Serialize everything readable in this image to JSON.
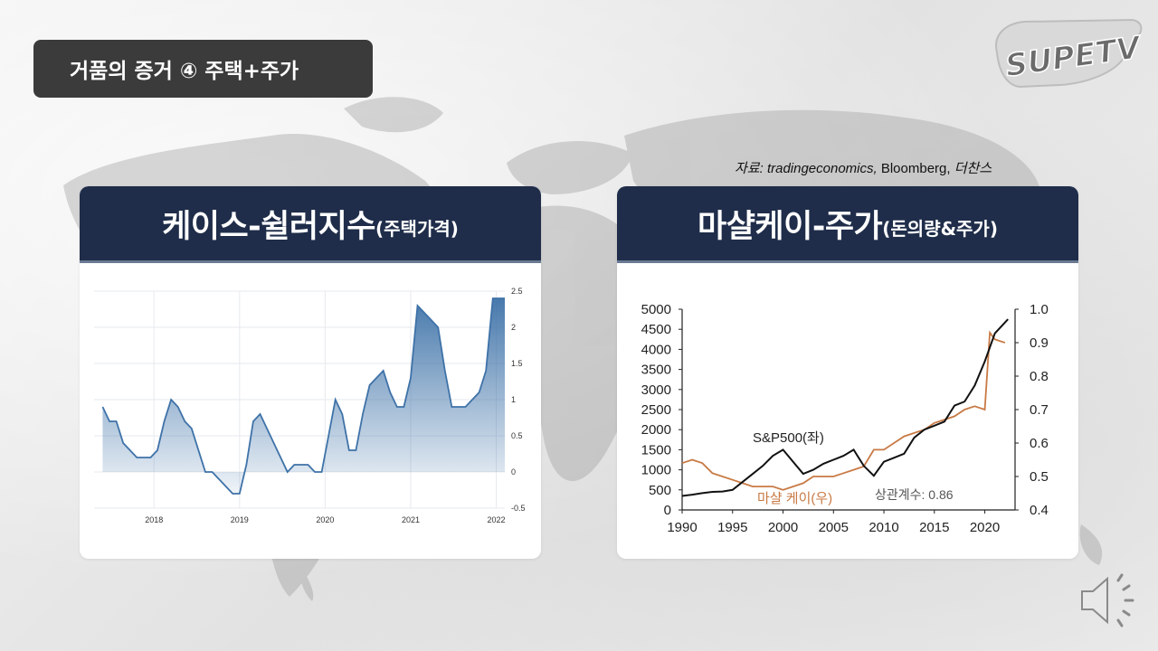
{
  "slide": {
    "title": "거품의 증거 ④ 주택+주가",
    "logo_text": "SUPETV",
    "source": {
      "prefix": "자료: ",
      "italic": "tradingeconomics,",
      "normal": " Bloomberg, ",
      "tail": "더찬스"
    },
    "speaker_icon": "speaker-icon"
  },
  "panels": {
    "left": {
      "title_big": "케이스-쉴러지수",
      "title_small": "(주택가격)"
    },
    "right": {
      "title_big": "마샬케이-주가",
      "title_small": "(돈의량&주가)"
    }
  },
  "chart_data": [
    {
      "type": "area",
      "title": "케이스-쉴러지수(주택가격)",
      "xlabel": "",
      "ylabel": "",
      "x_ticks": [
        "2018",
        "2019",
        "2020",
        "2021",
        "2022"
      ],
      "x_tick_values": [
        2018,
        2019,
        2020,
        2021,
        2022
      ],
      "y_ticks": [
        "2.5",
        "2",
        "1.5",
        "1",
        "0.5",
        "0",
        "-0.5"
      ],
      "ylim": [
        -0.5,
        2.5
      ],
      "xlim": [
        2017.3,
        2022.1
      ],
      "y_axis_side": "right",
      "grid": true,
      "color": "#3e72a8",
      "x": [
        2017.4,
        2017.48,
        2017.56,
        2017.64,
        2017.72,
        2017.8,
        2017.88,
        2017.96,
        2018.04,
        2018.12,
        2018.2,
        2018.28,
        2018.36,
        2018.44,
        2018.52,
        2018.6,
        2018.68,
        2018.76,
        2018.84,
        2018.92,
        2019.0,
        2019.08,
        2019.16,
        2019.24,
        2019.32,
        2019.4,
        2019.48,
        2019.56,
        2019.64,
        2019.72,
        2019.8,
        2019.88,
        2019.96,
        2020.04,
        2020.12,
        2020.2,
        2020.28,
        2020.36,
        2020.44,
        2020.52,
        2020.6,
        2020.68,
        2020.76,
        2020.84,
        2020.92,
        2021.0,
        2021.08,
        2021.16,
        2021.24,
        2021.32,
        2021.4,
        2021.48,
        2021.56,
        2021.64,
        2021.72,
        2021.8,
        2021.88,
        2021.96,
        2022.04,
        2022.1
      ],
      "values": [
        0.9,
        0.7,
        0.7,
        0.4,
        0.3,
        0.2,
        0.2,
        0.2,
        0.3,
        0.7,
        1.0,
        0.9,
        0.7,
        0.6,
        0.3,
        0.0,
        0.0,
        -0.1,
        -0.2,
        -0.3,
        -0.3,
        0.1,
        0.7,
        0.8,
        0.6,
        0.4,
        0.2,
        0.0,
        0.1,
        0.1,
        0.1,
        0.0,
        0.0,
        0.5,
        1.0,
        0.8,
        0.3,
        0.3,
        0.8,
        1.2,
        1.3,
        1.4,
        1.1,
        0.9,
        0.9,
        1.3,
        2.3,
        2.2,
        2.1,
        2.0,
        1.4,
        0.9,
        0.9,
        0.9,
        1.0,
        1.1,
        1.4,
        2.4,
        2.4,
        2.4
      ]
    },
    {
      "type": "line",
      "title": "마샬케이-주가(돈의량&주가)",
      "xlabel": "",
      "ylabel": "",
      "x_ticks": [
        "1990",
        "1995",
        "2000",
        "2005",
        "2010",
        "2015",
        "2020"
      ],
      "x_tick_values": [
        1990,
        1995,
        2000,
        2005,
        2010,
        2015,
        2020
      ],
      "xlim": [
        1990,
        2023
      ],
      "y_left_ticks": [
        "5000",
        "4500",
        "4000",
        "3500",
        "3000",
        "2500",
        "2000",
        "1500",
        "1000",
        "500",
        "0"
      ],
      "ylim_left": [
        0,
        5000
      ],
      "y_right_ticks": [
        "1.0",
        "0.9",
        "0.8",
        "0.7",
        "0.6",
        "0.5",
        "0.4"
      ],
      "ylim_right": [
        0.4,
        1.0
      ],
      "grid": false,
      "annotations": [
        {
          "text": "S&P500(좌)"
        },
        {
          "text": "마샬 케이(우)"
        },
        {
          "text": "상관계수: 0.86"
        }
      ],
      "series": [
        {
          "name": "S&P500(좌)",
          "axis": "left",
          "color": "#111111",
          "x": [
            1990,
            1991,
            1992,
            1993,
            1994,
            1995,
            1996,
            1997,
            1998,
            1999,
            2000,
            2001,
            2002,
            2003,
            2004,
            2005,
            2006,
            2007,
            2008,
            2009,
            2010,
            2011,
            2012,
            2013,
            2014,
            2015,
            2016,
            2017,
            2018,
            2019,
            2020,
            2021,
            2022.3
          ],
          "values": [
            350,
            380,
            420,
            450,
            460,
            500,
            700,
            900,
            1100,
            1350,
            1500,
            1200,
            900,
            1000,
            1150,
            1250,
            1350,
            1500,
            1100,
            850,
            1200,
            1300,
            1400,
            1800,
            2000,
            2100,
            2200,
            2600,
            2700,
            3100,
            3700,
            4400,
            4750
          ]
        },
        {
          "name": "마샬 케이(우)",
          "axis": "right",
          "color": "#c87a45",
          "x": [
            1990,
            1991,
            1992,
            1993,
            1994,
            1995,
            1996,
            1997,
            1998,
            1999,
            2000,
            2001,
            2002,
            2003,
            2004,
            2005,
            2006,
            2007,
            2008,
            2009,
            2010,
            2011,
            2012,
            2013,
            2014,
            2015,
            2016,
            2017,
            2018,
            2019,
            2020,
            2020.5,
            2021,
            2022
          ],
          "values": [
            0.54,
            0.55,
            0.54,
            0.51,
            0.5,
            0.49,
            0.48,
            0.47,
            0.47,
            0.47,
            0.46,
            0.47,
            0.48,
            0.5,
            0.5,
            0.5,
            0.51,
            0.52,
            0.53,
            0.58,
            0.58,
            0.6,
            0.62,
            0.63,
            0.64,
            0.66,
            0.67,
            0.68,
            0.7,
            0.71,
            0.7,
            0.93,
            0.91,
            0.9
          ]
        }
      ]
    }
  ]
}
